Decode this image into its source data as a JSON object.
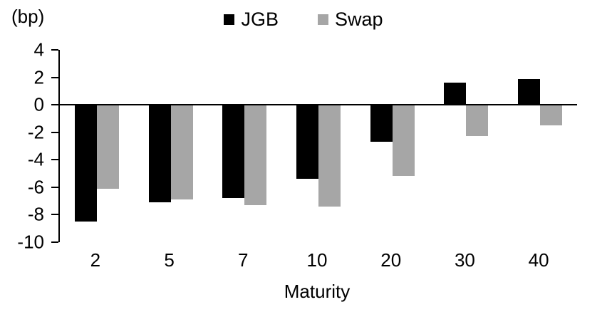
{
  "chart_data": {
    "type": "bar",
    "title": "",
    "unit_label": "(bp)",
    "xlabel": "Maturity",
    "categories": [
      "2",
      "5",
      "7",
      "10",
      "20",
      "30",
      "40"
    ],
    "series": [
      {
        "name": "JGB",
        "color": "#000000",
        "values": [
          -8.5,
          -7.1,
          -6.8,
          -5.4,
          -2.7,
          1.6,
          1.9
        ]
      },
      {
        "name": "Swap",
        "color": "#a6a6a6",
        "values": [
          -6.1,
          -6.9,
          -7.3,
          -7.4,
          -5.2,
          -2.3,
          -1.5
        ]
      }
    ],
    "ylim": [
      -10,
      4
    ],
    "yticks": [
      4,
      2,
      0,
      -2,
      -4,
      -6,
      -8,
      -10
    ],
    "legend_position": "top",
    "grid": false,
    "axis_color": "#000000"
  }
}
